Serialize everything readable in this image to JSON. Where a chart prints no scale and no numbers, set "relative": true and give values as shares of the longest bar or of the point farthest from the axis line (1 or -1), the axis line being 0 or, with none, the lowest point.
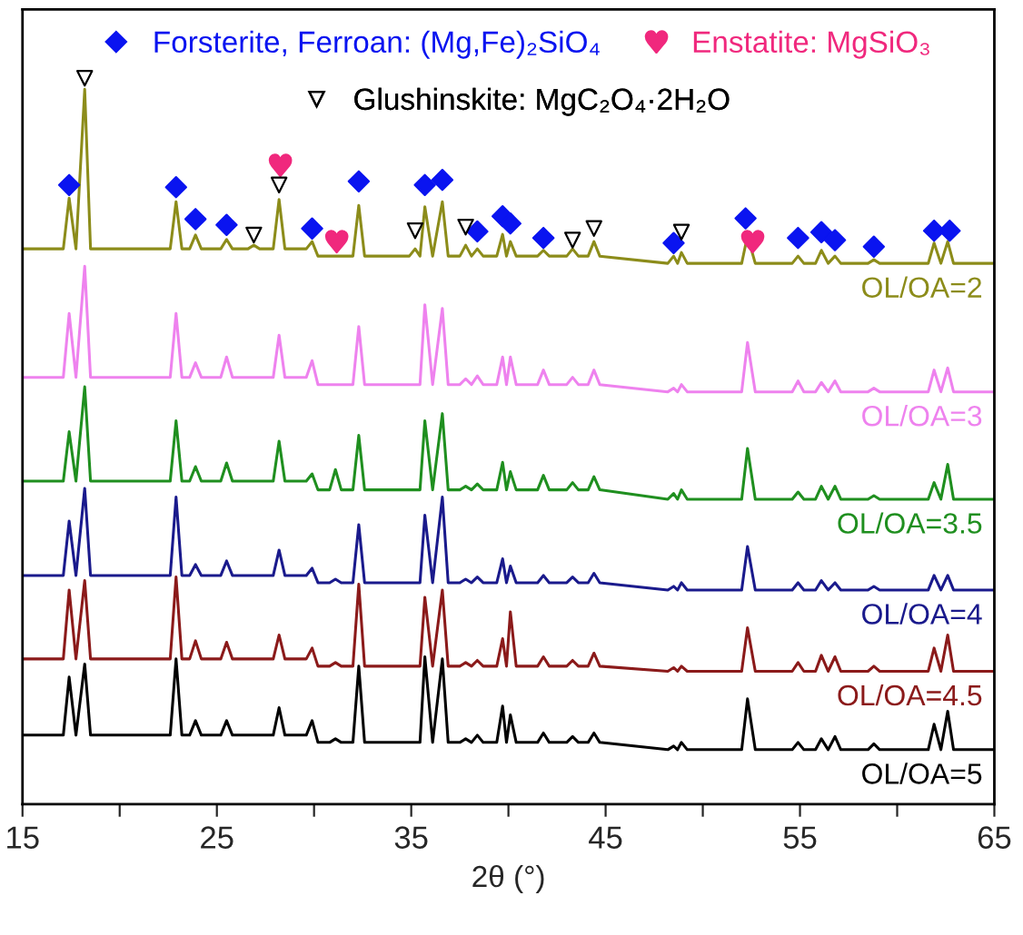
{
  "chart_data": {
    "type": "line",
    "xlabel": "2θ (°)",
    "relative": true,
    "xlim": [
      15,
      65
    ],
    "xticks": [
      15,
      {
        "value": 20,
        "label": null
      },
      25,
      {
        "value": 30,
        "label": null
      },
      35,
      {
        "value": 40,
        "label": null
      },
      45,
      {
        "value": 50,
        "label": null
      },
      55,
      {
        "value": 60,
        "label": null
      },
      65
    ],
    "tick_labels": "x",
    "grid": false,
    "legend": "top",
    "x": [
      15,
      17.1,
      17.4,
      17.75,
      18.2,
      18.5,
      22.6,
      22.9,
      23.2,
      23.6,
      23.9,
      24.2,
      25.2,
      25.5,
      25.8,
      26.6,
      26.9,
      27.2,
      27.9,
      28.2,
      28.5,
      29.6,
      29.9,
      30.2,
      30.8,
      31.1,
      31.4,
      32.0,
      32.3,
      32.6,
      34.9,
      35.2,
      35.45,
      35.7,
      36.1,
      36.6,
      36.9,
      37.5,
      37.8,
      38.1,
      38.4,
      38.7,
      39.4,
      39.7,
      39.9,
      40.1,
      40.4,
      41.5,
      41.8,
      42.1,
      43.0,
      43.3,
      43.6,
      44.1,
      44.4,
      44.7,
      48.2,
      48.5,
      48.7,
      48.9,
      49.2,
      52.0,
      52.3,
      52.7,
      54.6,
      54.9,
      55.2,
      55.8,
      56.1,
      56.45,
      56.8,
      57.1,
      58.5,
      58.8,
      59.1,
      61.6,
      61.9,
      62.25,
      62.6,
      62.9,
      65
    ],
    "series": [
      {
        "name": "OL/OA=2",
        "color": "#8c8c1a",
        "values": [
          0.765,
          0.765,
          0.835,
          0.765,
          0.985,
          0.765,
          0.765,
          0.83,
          0.765,
          0.765,
          0.784,
          0.765,
          0.765,
          0.778,
          0.765,
          0.765,
          0.77,
          0.765,
          0.765,
          0.833,
          0.765,
          0.765,
          0.775,
          0.755,
          0.755,
          0.755,
          0.755,
          0.755,
          0.825,
          0.755,
          0.755,
          0.765,
          0.755,
          0.823,
          0.755,
          0.83,
          0.755,
          0.755,
          0.77,
          0.755,
          0.765,
          0.755,
          0.755,
          0.785,
          0.755,
          0.775,
          0.755,
          0.755,
          0.763,
          0.755,
          0.755,
          0.765,
          0.755,
          0.755,
          0.775,
          0.755,
          0.745,
          0.755,
          0.745,
          0.76,
          0.745,
          0.745,
          0.783,
          0.745,
          0.745,
          0.755,
          0.745,
          0.745,
          0.763,
          0.745,
          0.755,
          0.745,
          0.745,
          0.75,
          0.745,
          0.745,
          0.773,
          0.745,
          0.775,
          0.745,
          0.745
        ]
      },
      {
        "name": "OL/OA=3",
        "color": "#ee82ee",
        "values": [
          0.588,
          0.588,
          0.676,
          0.588,
          0.741,
          0.588,
          0.588,
          0.676,
          0.588,
          0.588,
          0.608,
          0.588,
          0.588,
          0.616,
          0.588,
          0.588,
          0.588,
          0.588,
          0.588,
          0.646,
          0.588,
          0.588,
          0.611,
          0.578,
          0.578,
          0.578,
          0.578,
          0.578,
          0.658,
          0.578,
          0.578,
          0.578,
          0.578,
          0.688,
          0.578,
          0.683,
          0.578,
          0.578,
          0.586,
          0.578,
          0.59,
          0.578,
          0.578,
          0.616,
          0.578,
          0.616,
          0.578,
          0.578,
          0.598,
          0.578,
          0.578,
          0.588,
          0.578,
          0.578,
          0.598,
          0.578,
          0.568,
          0.573,
          0.568,
          0.578,
          0.568,
          0.568,
          0.636,
          0.568,
          0.568,
          0.583,
          0.568,
          0.568,
          0.581,
          0.568,
          0.583,
          0.568,
          0.568,
          0.573,
          0.568,
          0.568,
          0.598,
          0.568,
          0.601,
          0.568,
          0.568
        ]
      },
      {
        "name": "OL/OA=3.5",
        "color": "#1f8f1f",
        "values": [
          0.445,
          0.445,
          0.513,
          0.445,
          0.575,
          0.445,
          0.445,
          0.528,
          0.445,
          0.445,
          0.465,
          0.445,
          0.445,
          0.47,
          0.445,
          0.445,
          0.445,
          0.445,
          0.445,
          0.5,
          0.445,
          0.445,
          0.455,
          0.433,
          0.433,
          0.461,
          0.433,
          0.433,
          0.508,
          0.433,
          0.433,
          0.433,
          0.433,
          0.528,
          0.433,
          0.538,
          0.433,
          0.433,
          0.438,
          0.433,
          0.441,
          0.433,
          0.433,
          0.471,
          0.433,
          0.458,
          0.433,
          0.433,
          0.453,
          0.433,
          0.433,
          0.443,
          0.433,
          0.433,
          0.451,
          0.433,
          0.42,
          0.428,
          0.42,
          0.433,
          0.42,
          0.42,
          0.49,
          0.42,
          0.42,
          0.43,
          0.42,
          0.42,
          0.438,
          0.42,
          0.438,
          0.42,
          0.42,
          0.425,
          0.42,
          0.42,
          0.443,
          0.42,
          0.468,
          0.42,
          0.42
        ]
      },
      {
        "name": "OL/OA=4",
        "color": "#1a1a8c",
        "values": [
          0.315,
          0.315,
          0.39,
          0.315,
          0.435,
          0.315,
          0.315,
          0.423,
          0.315,
          0.315,
          0.33,
          0.315,
          0.315,
          0.335,
          0.315,
          0.315,
          0.315,
          0.315,
          0.315,
          0.35,
          0.315,
          0.315,
          0.325,
          0.305,
          0.305,
          0.31,
          0.305,
          0.305,
          0.385,
          0.305,
          0.305,
          0.305,
          0.305,
          0.398,
          0.305,
          0.423,
          0.305,
          0.305,
          0.31,
          0.305,
          0.313,
          0.305,
          0.305,
          0.338,
          0.305,
          0.328,
          0.305,
          0.305,
          0.315,
          0.305,
          0.305,
          0.313,
          0.305,
          0.305,
          0.318,
          0.305,
          0.295,
          0.3,
          0.295,
          0.305,
          0.295,
          0.295,
          0.355,
          0.295,
          0.295,
          0.305,
          0.295,
          0.295,
          0.308,
          0.295,
          0.305,
          0.295,
          0.295,
          0.3,
          0.295,
          0.295,
          0.315,
          0.295,
          0.315,
          0.295,
          0.295
        ]
      },
      {
        "name": "OL/OA=4.5",
        "color": "#8b1a1a",
        "values": [
          0.2,
          0.2,
          0.295,
          0.2,
          0.308,
          0.2,
          0.2,
          0.313,
          0.2,
          0.2,
          0.225,
          0.2,
          0.2,
          0.223,
          0.2,
          0.2,
          0.2,
          0.2,
          0.2,
          0.233,
          0.2,
          0.2,
          0.215,
          0.19,
          0.19,
          0.195,
          0.19,
          0.19,
          0.303,
          0.19,
          0.19,
          0.19,
          0.19,
          0.285,
          0.19,
          0.295,
          0.19,
          0.19,
          0.195,
          0.19,
          0.198,
          0.19,
          0.19,
          0.228,
          0.19,
          0.265,
          0.19,
          0.19,
          0.203,
          0.19,
          0.19,
          0.198,
          0.19,
          0.19,
          0.208,
          0.19,
          0.183,
          0.188,
          0.183,
          0.19,
          0.183,
          0.183,
          0.243,
          0.183,
          0.183,
          0.195,
          0.183,
          0.183,
          0.205,
          0.183,
          0.203,
          0.183,
          0.183,
          0.19,
          0.183,
          0.183,
          0.215,
          0.183,
          0.233,
          0.183,
          0.183
        ]
      },
      {
        "name": "OL/OA=5",
        "color": "#000000",
        "values": [
          0.095,
          0.095,
          0.175,
          0.095,
          0.193,
          0.095,
          0.095,
          0.2,
          0.095,
          0.095,
          0.115,
          0.095,
          0.095,
          0.115,
          0.095,
          0.095,
          0.095,
          0.095,
          0.095,
          0.133,
          0.095,
          0.095,
          0.115,
          0.085,
          0.085,
          0.09,
          0.085,
          0.085,
          0.19,
          0.085,
          0.085,
          0.085,
          0.085,
          0.203,
          0.085,
          0.2,
          0.085,
          0.085,
          0.09,
          0.085,
          0.095,
          0.085,
          0.085,
          0.135,
          0.085,
          0.123,
          0.085,
          0.085,
          0.098,
          0.085,
          0.085,
          0.093,
          0.085,
          0.085,
          0.098,
          0.085,
          0.075,
          0.08,
          0.075,
          0.085,
          0.075,
          0.075,
          0.145,
          0.075,
          0.075,
          0.085,
          0.075,
          0.075,
          0.09,
          0.075,
          0.093,
          0.075,
          0.075,
          0.083,
          0.075,
          0.075,
          0.11,
          0.075,
          0.128,
          0.075,
          0.075
        ]
      },
      {
        "name": "Forsterite, Ferroan: (Mg,Fe)₂SiO₄",
        "type": "scatter",
        "marker": "diamond",
        "color": "#0a14f0",
        "x": [
          17.4,
          22.9,
          23.9,
          25.5,
          29.9,
          32.3,
          35.7,
          36.6,
          38.4,
          39.7,
          40.1,
          41.8,
          48.5,
          52.2,
          54.9,
          56.1,
          56.8,
          58.8,
          61.9,
          62.7
        ],
        "values": [
          0.853,
          0.85,
          0.806,
          0.798,
          0.793,
          0.858,
          0.853,
          0.86,
          0.789,
          0.81,
          0.8,
          0.78,
          0.773,
          0.807,
          0.78,
          0.788,
          0.777,
          0.768,
          0.79,
          0.79
        ]
      },
      {
        "name": "Enstatite: MgSiO₃",
        "type": "scatter",
        "color": "#f0287d",
        "x": [
          28.2,
          31.1,
          52.5
        ],
        "values": [
          0.88,
          0.775,
          0.775
        ]
      },
      {
        "name": "Glushinskite: MgC₂O₄·2H₂O",
        "type": "scatter",
        "marker": "triangle",
        "color": "#000000",
        "x": [
          18.2,
          26.9,
          28.2,
          35.2,
          37.8,
          43.3,
          44.4,
          48.9
        ],
        "values": [
          1.0,
          0.784,
          0.853,
          0.79,
          0.795,
          0.777,
          0.793,
          0.788
        ]
      }
    ]
  }
}
